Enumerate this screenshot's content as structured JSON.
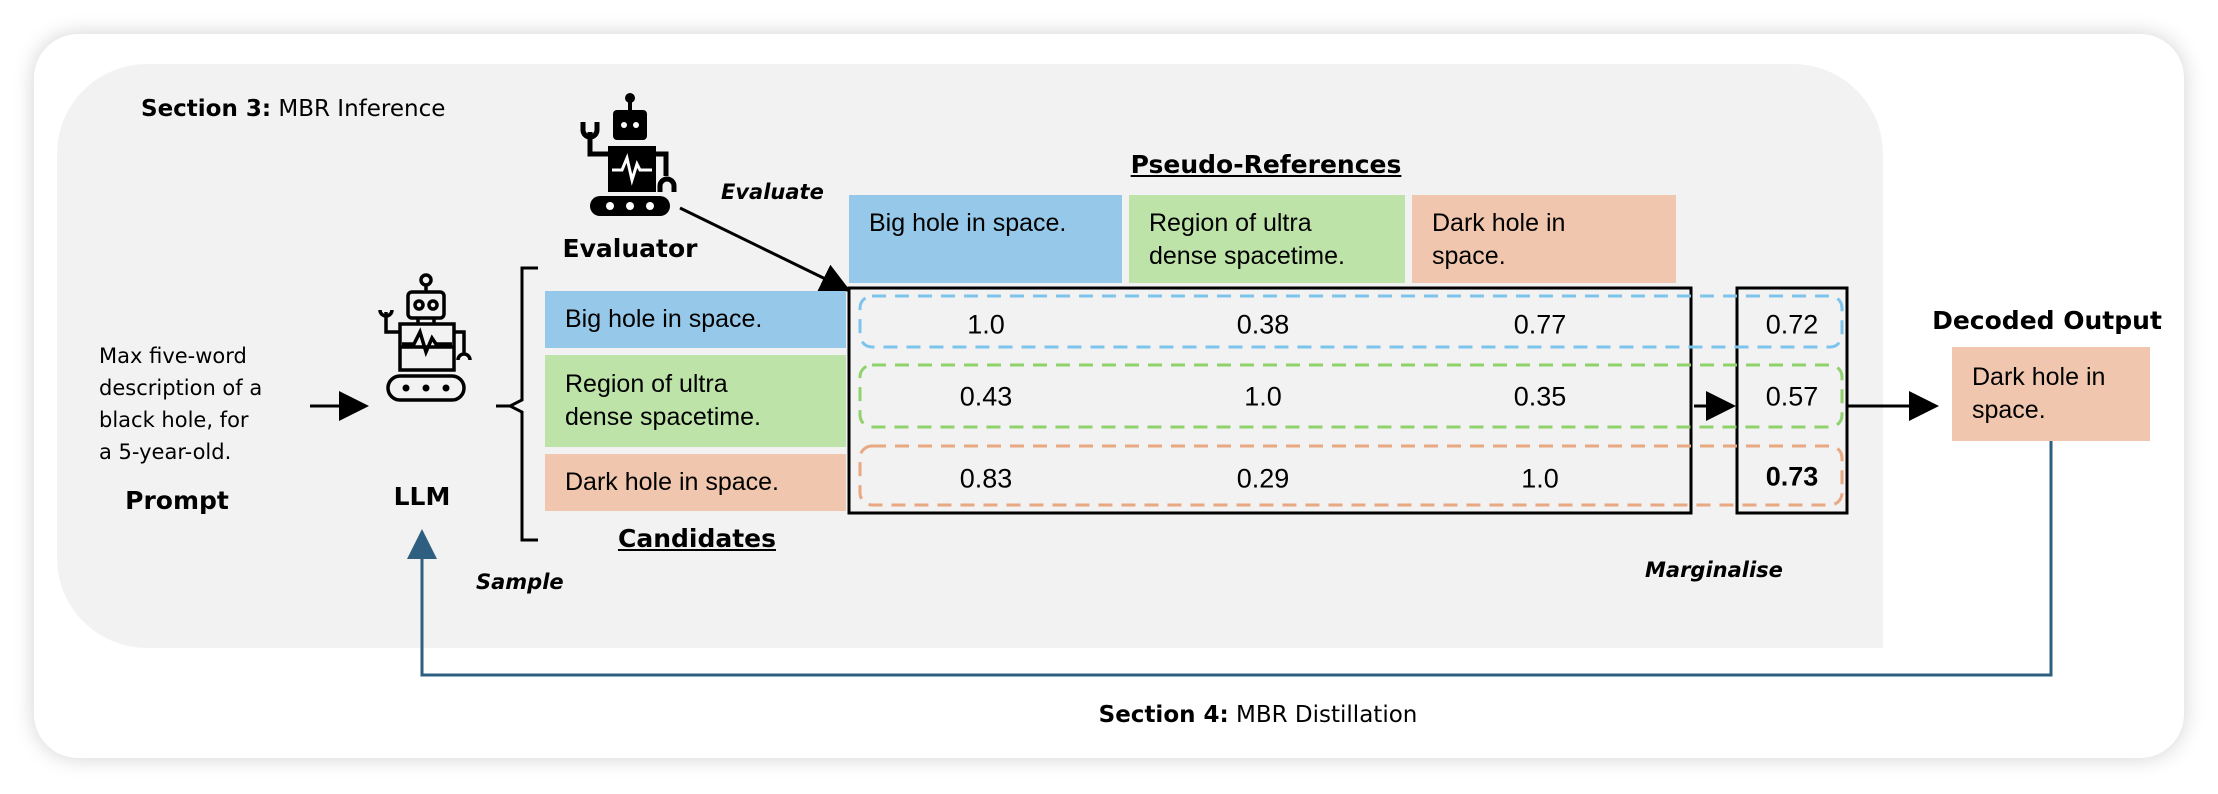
{
  "section3": {
    "bold": "Section 3:",
    "text": " MBR Inference"
  },
  "section4": {
    "bold": "Section 4:",
    "text": " MBR Distillation"
  },
  "prompt": {
    "lines": [
      "Max five-word",
      "description of a",
      "black hole, for",
      "a 5-year-old."
    ],
    "label": "Prompt"
  },
  "llm": {
    "label": "LLM",
    "icon": "robot-icon"
  },
  "evaluator": {
    "label": "Evaluator",
    "icon": "robot-icon",
    "action": "Evaluate"
  },
  "sample_label": "Sample",
  "marginalise_label": "Marginalise",
  "candidates": {
    "label": "Candidates",
    "items": [
      "Big hole in space.",
      "Region of ultra dense spacetime.",
      "Dark hole in space."
    ]
  },
  "pseudo_references": {
    "label": "Pseudo-References",
    "items": [
      "Big hole in space.",
      "Region of ultra dense spacetime.",
      "Dark hole in space."
    ]
  },
  "matrix": [
    [
      "1.0",
      "0.38",
      "0.77"
    ],
    [
      "0.43",
      "1.0",
      "0.35"
    ],
    [
      "0.83",
      "0.29",
      "1.0"
    ]
  ],
  "marginal_scores": [
    "0.72",
    "0.57",
    "0.73"
  ],
  "decoded_output": {
    "label": "Decoded Output",
    "text": "Dark hole in space."
  },
  "colors": {
    "blue": "#96c9e9",
    "green": "#bde3a8",
    "orange": "#f0c7ae",
    "distill_line": "#2e5f80"
  }
}
